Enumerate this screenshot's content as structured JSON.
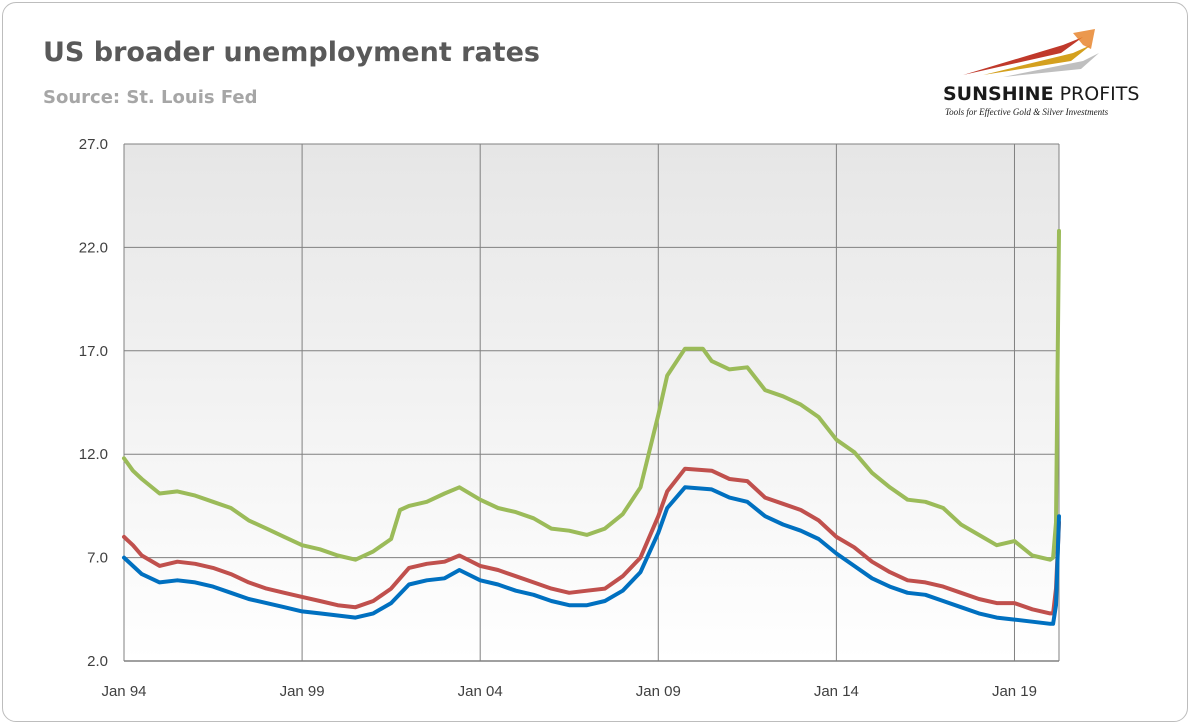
{
  "header": {
    "title": "US broader unemployment rates",
    "subtitle": "Source: St. Louis Fed"
  },
  "logo": {
    "name_bold": "SUNSHINE",
    "name_light": " PROFITS",
    "tagline": "Tools for Effective Gold & Silver Investments"
  },
  "colors": {
    "u4": "#0070c0",
    "u5": "#c0504d",
    "u6": "#9bbb59",
    "grid": "#808080",
    "plot_bg_top": "#e6e6e6",
    "plot_bg_bottom": "#ffffff"
  },
  "chart_data": {
    "type": "line",
    "title": "US broader unemployment rates",
    "subtitle": "Source: St. Louis Fed",
    "xlabel": "",
    "ylabel": "",
    "ylim": [
      2.0,
      27.0
    ],
    "xlim": [
      "1994-01",
      "2020-04"
    ],
    "y_ticks": [
      "2.0",
      "7.0",
      "12.0",
      "17.0",
      "22.0",
      "27.0"
    ],
    "x_ticks": [
      {
        "label": "Jan 94",
        "date": "1994-01"
      },
      {
        "label": "Jan 99",
        "date": "1999-01"
      },
      {
        "label": "Jan 04",
        "date": "2004-01"
      },
      {
        "label": "Jan 09",
        "date": "2009-01"
      },
      {
        "label": "Jan 14",
        "date": "2014-01"
      },
      {
        "label": "Jan 19",
        "date": "2019-01"
      }
    ],
    "grid": true,
    "legend": "none",
    "series": [
      {
        "color": "#9bbb59",
        "points": [
          [
            "1994-01",
            11.8
          ],
          [
            "1994-04",
            11.2
          ],
          [
            "1994-07",
            10.8
          ],
          [
            "1995-01",
            10.1
          ],
          [
            "1995-07",
            10.2
          ],
          [
            "1996-01",
            10.0
          ],
          [
            "1996-07",
            9.7
          ],
          [
            "1997-01",
            9.4
          ],
          [
            "1997-07",
            8.8
          ],
          [
            "1998-01",
            8.4
          ],
          [
            "1998-07",
            8.0
          ],
          [
            "1999-01",
            7.6
          ],
          [
            "1999-07",
            7.4
          ],
          [
            "2000-01",
            7.1
          ],
          [
            "2000-07",
            6.9
          ],
          [
            "2001-01",
            7.3
          ],
          [
            "2001-07",
            7.9
          ],
          [
            "2001-10",
            9.3
          ],
          [
            "2002-01",
            9.5
          ],
          [
            "2002-07",
            9.7
          ],
          [
            "2003-01",
            10.1
          ],
          [
            "2003-06",
            10.4
          ],
          [
            "2004-01",
            9.8
          ],
          [
            "2004-07",
            9.4
          ],
          [
            "2005-01",
            9.2
          ],
          [
            "2005-07",
            8.9
          ],
          [
            "2006-01",
            8.4
          ],
          [
            "2006-07",
            8.3
          ],
          [
            "2007-01",
            8.1
          ],
          [
            "2007-07",
            8.4
          ],
          [
            "2008-01",
            9.1
          ],
          [
            "2008-07",
            10.4
          ],
          [
            "2009-01",
            13.9
          ],
          [
            "2009-04",
            15.8
          ],
          [
            "2009-10",
            17.1
          ],
          [
            "2010-04",
            17.1
          ],
          [
            "2010-07",
            16.5
          ],
          [
            "2011-01",
            16.1
          ],
          [
            "2011-07",
            16.2
          ],
          [
            "2012-01",
            15.1
          ],
          [
            "2012-07",
            14.8
          ],
          [
            "2013-01",
            14.4
          ],
          [
            "2013-07",
            13.8
          ],
          [
            "2014-01",
            12.7
          ],
          [
            "2014-07",
            12.1
          ],
          [
            "2015-01",
            11.1
          ],
          [
            "2015-07",
            10.4
          ],
          [
            "2016-01",
            9.8
          ],
          [
            "2016-07",
            9.7
          ],
          [
            "2017-01",
            9.4
          ],
          [
            "2017-07",
            8.6
          ],
          [
            "2018-01",
            8.1
          ],
          [
            "2018-07",
            7.6
          ],
          [
            "2019-01",
            7.8
          ],
          [
            "2019-07",
            7.1
          ],
          [
            "2020-01",
            6.9
          ],
          [
            "2020-02",
            7.0
          ],
          [
            "2020-03",
            8.7
          ],
          [
            "2020-04",
            22.8
          ]
        ]
      },
      {
        "color": "#c0504d",
        "points": [
          [
            "1994-01",
            8.0
          ],
          [
            "1994-04",
            7.6
          ],
          [
            "1994-07",
            7.1
          ],
          [
            "1995-01",
            6.6
          ],
          [
            "1995-07",
            6.8
          ],
          [
            "1996-01",
            6.7
          ],
          [
            "1996-07",
            6.5
          ],
          [
            "1997-01",
            6.2
          ],
          [
            "1997-07",
            5.8
          ],
          [
            "1998-01",
            5.5
          ],
          [
            "1998-07",
            5.3
          ],
          [
            "1999-01",
            5.1
          ],
          [
            "1999-07",
            4.9
          ],
          [
            "2000-01",
            4.7
          ],
          [
            "2000-07",
            4.6
          ],
          [
            "2001-01",
            4.9
          ],
          [
            "2001-07",
            5.5
          ],
          [
            "2002-01",
            6.5
          ],
          [
            "2002-07",
            6.7
          ],
          [
            "2003-01",
            6.8
          ],
          [
            "2003-06",
            7.1
          ],
          [
            "2004-01",
            6.6
          ],
          [
            "2004-07",
            6.4
          ],
          [
            "2005-01",
            6.1
          ],
          [
            "2005-07",
            5.8
          ],
          [
            "2006-01",
            5.5
          ],
          [
            "2006-07",
            5.3
          ],
          [
            "2007-01",
            5.4
          ],
          [
            "2007-07",
            5.5
          ],
          [
            "2008-01",
            6.1
          ],
          [
            "2008-07",
            7.0
          ],
          [
            "2009-01",
            9.0
          ],
          [
            "2009-04",
            10.2
          ],
          [
            "2009-10",
            11.3
          ],
          [
            "2010-07",
            11.2
          ],
          [
            "2011-01",
            10.8
          ],
          [
            "2011-07",
            10.7
          ],
          [
            "2012-01",
            9.9
          ],
          [
            "2012-07",
            9.6
          ],
          [
            "2013-01",
            9.3
          ],
          [
            "2013-07",
            8.8
          ],
          [
            "2014-01",
            8.0
          ],
          [
            "2014-07",
            7.5
          ],
          [
            "2015-01",
            6.8
          ],
          [
            "2015-07",
            6.3
          ],
          [
            "2016-01",
            5.9
          ],
          [
            "2016-07",
            5.8
          ],
          [
            "2017-01",
            5.6
          ],
          [
            "2017-07",
            5.3
          ],
          [
            "2018-01",
            5.0
          ],
          [
            "2018-07",
            4.8
          ],
          [
            "2019-01",
            4.8
          ],
          [
            "2019-07",
            4.5
          ],
          [
            "2020-01",
            4.3
          ],
          [
            "2020-02",
            4.3
          ],
          [
            "2020-03",
            5.5
          ],
          [
            "2020-04",
            8.7
          ]
        ]
      },
      {
        "color": "#0070c0",
        "points": [
          [
            "1994-01",
            7.0
          ],
          [
            "1994-04",
            6.6
          ],
          [
            "1994-07",
            6.2
          ],
          [
            "1995-01",
            5.8
          ],
          [
            "1995-07",
            5.9
          ],
          [
            "1996-01",
            5.8
          ],
          [
            "1996-07",
            5.6
          ],
          [
            "1997-01",
            5.3
          ],
          [
            "1997-07",
            5.0
          ],
          [
            "1998-01",
            4.8
          ],
          [
            "1998-07",
            4.6
          ],
          [
            "1999-01",
            4.4
          ],
          [
            "1999-07",
            4.3
          ],
          [
            "2000-01",
            4.2
          ],
          [
            "2000-07",
            4.1
          ],
          [
            "2001-01",
            4.3
          ],
          [
            "2001-07",
            4.8
          ],
          [
            "2002-01",
            5.7
          ],
          [
            "2002-07",
            5.9
          ],
          [
            "2003-01",
            6.0
          ],
          [
            "2003-06",
            6.4
          ],
          [
            "2004-01",
            5.9
          ],
          [
            "2004-07",
            5.7
          ],
          [
            "2005-01",
            5.4
          ],
          [
            "2005-07",
            5.2
          ],
          [
            "2006-01",
            4.9
          ],
          [
            "2006-07",
            4.7
          ],
          [
            "2007-01",
            4.7
          ],
          [
            "2007-07",
            4.9
          ],
          [
            "2008-01",
            5.4
          ],
          [
            "2008-07",
            6.3
          ],
          [
            "2009-01",
            8.2
          ],
          [
            "2009-04",
            9.4
          ],
          [
            "2009-10",
            10.4
          ],
          [
            "2010-07",
            10.3
          ],
          [
            "2011-01",
            9.9
          ],
          [
            "2011-07",
            9.7
          ],
          [
            "2012-01",
            9.0
          ],
          [
            "2012-07",
            8.6
          ],
          [
            "2013-01",
            8.3
          ],
          [
            "2013-07",
            7.9
          ],
          [
            "2014-01",
            7.2
          ],
          [
            "2014-07",
            6.6
          ],
          [
            "2015-01",
            6.0
          ],
          [
            "2015-07",
            5.6
          ],
          [
            "2016-01",
            5.3
          ],
          [
            "2016-07",
            5.2
          ],
          [
            "2017-01",
            4.9
          ],
          [
            "2017-07",
            4.6
          ],
          [
            "2018-01",
            4.3
          ],
          [
            "2018-07",
            4.1
          ],
          [
            "2019-01",
            4.0
          ],
          [
            "2019-07",
            3.9
          ],
          [
            "2020-01",
            3.8
          ],
          [
            "2020-02",
            3.8
          ],
          [
            "2020-03",
            4.7
          ],
          [
            "2020-04",
            9.0
          ]
        ]
      }
    ]
  }
}
